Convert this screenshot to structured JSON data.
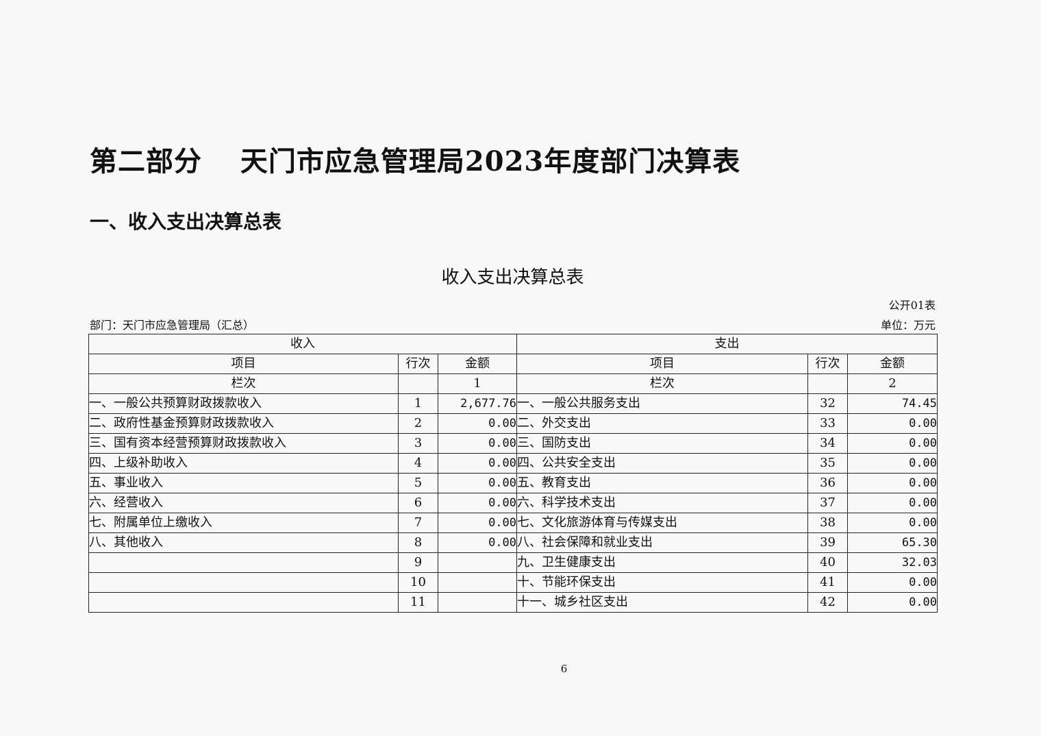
{
  "document": {
    "title": "第二部分　 天门市应急管理局2023年度部门决算表",
    "section_title": "一、收入支出决算总表",
    "table_title": "收入支出决算总表",
    "form_number": "公开01表",
    "department": "部门：天门市应急管理局（汇总）",
    "unit": "单位：万元",
    "page_number": "6"
  },
  "table": {
    "income_header": "收入",
    "expense_header": "支出",
    "col_item": "项目",
    "col_line": "行次",
    "col_amount": "金额",
    "col_column": "栏次",
    "income_column_no": "1",
    "expense_column_no": "2",
    "rows": [
      {
        "income_item": "一、一般公共预算财政拨款收入",
        "income_line": "1",
        "income_amount": "2,677.76",
        "expense_item": "一、一般公共服务支出",
        "expense_line": "32",
        "expense_amount": "74.45"
      },
      {
        "income_item": "二、政府性基金预算财政拨款收入",
        "income_line": "2",
        "income_amount": "0.00",
        "expense_item": "二、外交支出",
        "expense_line": "33",
        "expense_amount": "0.00"
      },
      {
        "income_item": "三、国有资本经营预算财政拨款收入",
        "income_line": "3",
        "income_amount": "0.00",
        "expense_item": "三、国防支出",
        "expense_line": "34",
        "expense_amount": "0.00"
      },
      {
        "income_item": "四、上级补助收入",
        "income_line": "4",
        "income_amount": "0.00",
        "expense_item": "四、公共安全支出",
        "expense_line": "35",
        "expense_amount": "0.00"
      },
      {
        "income_item": "五、事业收入",
        "income_line": "5",
        "income_amount": "0.00",
        "expense_item": "五、教育支出",
        "expense_line": "36",
        "expense_amount": "0.00"
      },
      {
        "income_item": "六、经营收入",
        "income_line": "6",
        "income_amount": "0.00",
        "expense_item": "六、科学技术支出",
        "expense_line": "37",
        "expense_amount": "0.00"
      },
      {
        "income_item": "七、附属单位上缴收入",
        "income_line": "7",
        "income_amount": "0.00",
        "expense_item": "七、文化旅游体育与传媒支出",
        "expense_line": "38",
        "expense_amount": "0.00"
      },
      {
        "income_item": "八、其他收入",
        "income_line": "8",
        "income_amount": "0.00",
        "expense_item": "八、社会保障和就业支出",
        "expense_line": "39",
        "expense_amount": "65.30"
      },
      {
        "income_item": "",
        "income_line": "9",
        "income_amount": "",
        "expense_item": "九、卫生健康支出",
        "expense_line": "40",
        "expense_amount": "32.03"
      },
      {
        "income_item": "",
        "income_line": "10",
        "income_amount": "",
        "expense_item": "十、节能环保支出",
        "expense_line": "41",
        "expense_amount": "0.00"
      },
      {
        "income_item": "",
        "income_line": "11",
        "income_amount": "",
        "expense_item": "十一、城乡社区支出",
        "expense_line": "42",
        "expense_amount": "0.00"
      }
    ]
  }
}
